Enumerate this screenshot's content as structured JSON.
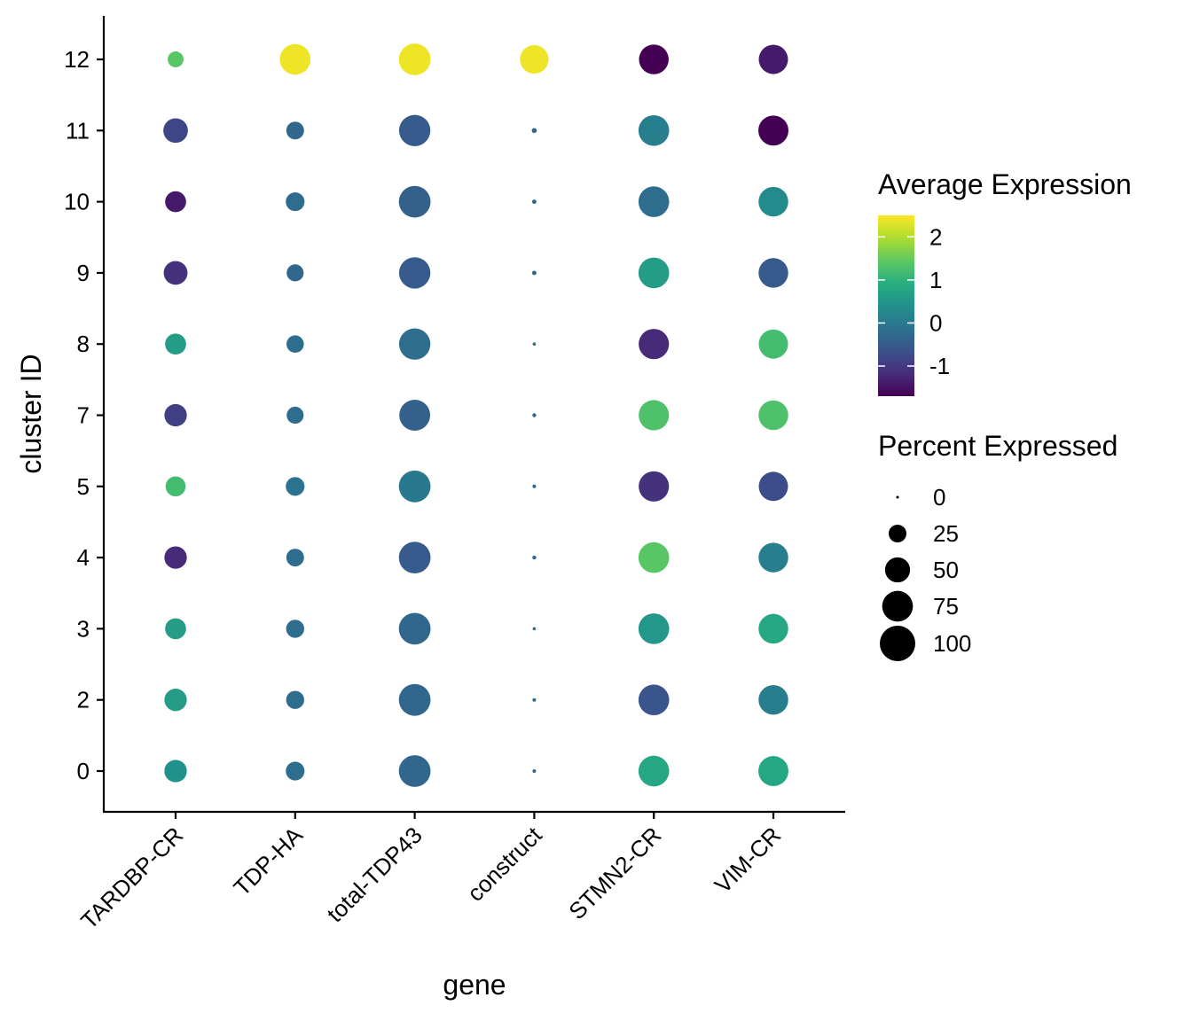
{
  "chart_data": {
    "type": "dotplot",
    "xlabel": "gene",
    "ylabel": "cluster ID",
    "genes": [
      "TARDBP-CR",
      "TDP-HA",
      "total-TDP43",
      "construct",
      "STMN2-CR",
      "VIM-CR"
    ],
    "clusters": [
      "0",
      "2",
      "3",
      "4",
      "5",
      "7",
      "8",
      "9",
      "10",
      "11",
      "12"
    ],
    "color_legend": {
      "title": "Average Expression",
      "ticks": [
        "2",
        "1",
        "0",
        "-1"
      ],
      "tick_values": [
        2,
        1,
        0,
        -1
      ],
      "range": [
        -1.7,
        2.5
      ]
    },
    "size_legend": {
      "title": "Percent Expressed",
      "labels": [
        "0",
        "25",
        "50",
        "75",
        "100"
      ],
      "values": [
        0,
        25,
        50,
        75,
        100
      ]
    },
    "points": [
      {
        "gene": "TARDBP-CR",
        "cluster": "12",
        "avg_exp": 1.4,
        "pct": 20
      },
      {
        "gene": "TARDBP-CR",
        "cluster": "11",
        "avg_exp": -0.8,
        "pct": 48
      },
      {
        "gene": "TARDBP-CR",
        "cluster": "10",
        "avg_exp": -1.4,
        "pct": 35
      },
      {
        "gene": "TARDBP-CR",
        "cluster": "9",
        "avg_exp": -1.1,
        "pct": 45
      },
      {
        "gene": "TARDBP-CR",
        "cluster": "8",
        "avg_exp": 0.6,
        "pct": 35
      },
      {
        "gene": "TARDBP-CR",
        "cluster": "7",
        "avg_exp": -0.9,
        "pct": 40
      },
      {
        "gene": "TARDBP-CR",
        "cluster": "5",
        "avg_exp": 1.2,
        "pct": 32
      },
      {
        "gene": "TARDBP-CR",
        "cluster": "4",
        "avg_exp": -1.2,
        "pct": 40
      },
      {
        "gene": "TARDBP-CR",
        "cluster": "3",
        "avg_exp": 0.6,
        "pct": 35
      },
      {
        "gene": "TARDBP-CR",
        "cluster": "2",
        "avg_exp": 0.6,
        "pct": 40
      },
      {
        "gene": "TARDBP-CR",
        "cluster": "0",
        "avg_exp": 0.4,
        "pct": 40
      },
      {
        "gene": "TDP-HA",
        "cluster": "12",
        "avg_exp": 2.4,
        "pct": 75
      },
      {
        "gene": "TDP-HA",
        "cluster": "11",
        "avg_exp": -0.3,
        "pct": 25
      },
      {
        "gene": "TDP-HA",
        "cluster": "10",
        "avg_exp": -0.2,
        "pct": 28
      },
      {
        "gene": "TDP-HA",
        "cluster": "9",
        "avg_exp": -0.3,
        "pct": 23
      },
      {
        "gene": "TDP-HA",
        "cluster": "8",
        "avg_exp": -0.2,
        "pct": 24
      },
      {
        "gene": "TDP-HA",
        "cluster": "7",
        "avg_exp": -0.2,
        "pct": 23
      },
      {
        "gene": "TDP-HA",
        "cluster": "5",
        "avg_exp": -0.1,
        "pct": 28
      },
      {
        "gene": "TDP-HA",
        "cluster": "4",
        "avg_exp": -0.2,
        "pct": 25
      },
      {
        "gene": "TDP-HA",
        "cluster": "3",
        "avg_exp": -0.2,
        "pct": 26
      },
      {
        "gene": "TDP-HA",
        "cluster": "2",
        "avg_exp": -0.2,
        "pct": 26
      },
      {
        "gene": "TDP-HA",
        "cluster": "0",
        "avg_exp": -0.2,
        "pct": 28
      },
      {
        "gene": "total-TDP43",
        "cluster": "12",
        "avg_exp": 2.4,
        "pct": 80
      },
      {
        "gene": "total-TDP43",
        "cluster": "11",
        "avg_exp": -0.5,
        "pct": 78
      },
      {
        "gene": "total-TDP43",
        "cluster": "10",
        "avg_exp": -0.4,
        "pct": 80
      },
      {
        "gene": "total-TDP43",
        "cluster": "9",
        "avg_exp": -0.5,
        "pct": 78
      },
      {
        "gene": "total-TDP43",
        "cluster": "8",
        "avg_exp": -0.2,
        "pct": 78
      },
      {
        "gene": "total-TDP43",
        "cluster": "7",
        "avg_exp": -0.4,
        "pct": 76
      },
      {
        "gene": "total-TDP43",
        "cluster": "5",
        "avg_exp": 0.0,
        "pct": 80
      },
      {
        "gene": "total-TDP43",
        "cluster": "4",
        "avg_exp": -0.5,
        "pct": 80
      },
      {
        "gene": "total-TDP43",
        "cluster": "3",
        "avg_exp": -0.3,
        "pct": 80
      },
      {
        "gene": "total-TDP43",
        "cluster": "2",
        "avg_exp": -0.3,
        "pct": 80
      },
      {
        "gene": "total-TDP43",
        "cluster": "0",
        "avg_exp": -0.3,
        "pct": 80
      },
      {
        "gene": "construct",
        "cluster": "12",
        "avg_exp": 2.4,
        "pct": 65
      },
      {
        "gene": "construct",
        "cluster": "11",
        "avg_exp": -0.3,
        "pct": 2
      },
      {
        "gene": "construct",
        "cluster": "10",
        "avg_exp": -0.3,
        "pct": 1.5
      },
      {
        "gene": "construct",
        "cluster": "9",
        "avg_exp": -0.3,
        "pct": 1.5
      },
      {
        "gene": "construct",
        "cluster": "8",
        "avg_exp": -0.3,
        "pct": 0.8
      },
      {
        "gene": "construct",
        "cluster": "7",
        "avg_exp": -0.3,
        "pct": 1.2
      },
      {
        "gene": "construct",
        "cluster": "5",
        "avg_exp": -0.3,
        "pct": 1.0
      },
      {
        "gene": "construct",
        "cluster": "4",
        "avg_exp": -0.3,
        "pct": 1.2
      },
      {
        "gene": "construct",
        "cluster": "3",
        "avg_exp": -0.3,
        "pct": 0.8
      },
      {
        "gene": "construct",
        "cluster": "2",
        "avg_exp": -0.3,
        "pct": 1.0
      },
      {
        "gene": "construct",
        "cluster": "0",
        "avg_exp": -0.3,
        "pct": 1.0
      },
      {
        "gene": "STMN2-CR",
        "cluster": "12",
        "avg_exp": -1.7,
        "pct": 70
      },
      {
        "gene": "STMN2-CR",
        "cluster": "11",
        "avg_exp": 0.1,
        "pct": 75
      },
      {
        "gene": "STMN2-CR",
        "cluster": "10",
        "avg_exp": -0.2,
        "pct": 75
      },
      {
        "gene": "STMN2-CR",
        "cluster": "9",
        "avg_exp": 0.6,
        "pct": 75
      },
      {
        "gene": "STMN2-CR",
        "cluster": "8",
        "avg_exp": -1.2,
        "pct": 73
      },
      {
        "gene": "STMN2-CR",
        "cluster": "7",
        "avg_exp": 1.3,
        "pct": 73
      },
      {
        "gene": "STMN2-CR",
        "cluster": "5",
        "avg_exp": -1.1,
        "pct": 73
      },
      {
        "gene": "STMN2-CR",
        "cluster": "4",
        "avg_exp": 1.4,
        "pct": 75
      },
      {
        "gene": "STMN2-CR",
        "cluster": "3",
        "avg_exp": 0.5,
        "pct": 75
      },
      {
        "gene": "STMN2-CR",
        "cluster": "2",
        "avg_exp": -0.6,
        "pct": 75
      },
      {
        "gene": "STMN2-CR",
        "cluster": "0",
        "avg_exp": 0.8,
        "pct": 75
      },
      {
        "gene": "VIM-CR",
        "cluster": "12",
        "avg_exp": -1.4,
        "pct": 68
      },
      {
        "gene": "VIM-CR",
        "cluster": "11",
        "avg_exp": -1.8,
        "pct": 72
      },
      {
        "gene": "VIM-CR",
        "cluster": "10",
        "avg_exp": 0.3,
        "pct": 70
      },
      {
        "gene": "VIM-CR",
        "cluster": "9",
        "avg_exp": -0.5,
        "pct": 70
      },
      {
        "gene": "VIM-CR",
        "cluster": "8",
        "avg_exp": 1.2,
        "pct": 68
      },
      {
        "gene": "VIM-CR",
        "cluster": "7",
        "avg_exp": 1.3,
        "pct": 70
      },
      {
        "gene": "VIM-CR",
        "cluster": "5",
        "avg_exp": -0.7,
        "pct": 68
      },
      {
        "gene": "VIM-CR",
        "cluster": "4",
        "avg_exp": 0.1,
        "pct": 70
      },
      {
        "gene": "VIM-CR",
        "cluster": "3",
        "avg_exp": 0.8,
        "pct": 70
      },
      {
        "gene": "VIM-CR",
        "cluster": "2",
        "avg_exp": 0.1,
        "pct": 70
      },
      {
        "gene": "VIM-CR",
        "cluster": "0",
        "avg_exp": 0.8,
        "pct": 72
      }
    ]
  }
}
